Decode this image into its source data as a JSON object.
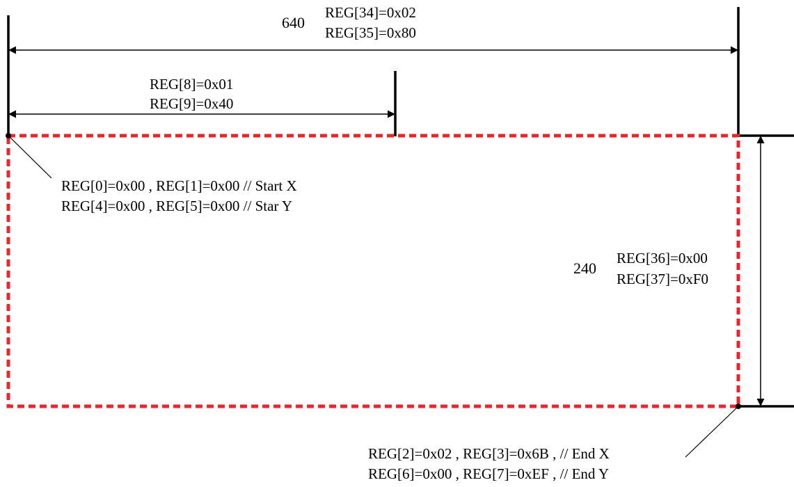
{
  "colors": {
    "window_outline": "#e8262c",
    "line": "#000000",
    "background": "#ffffff"
  },
  "total_width": {
    "value_text": "640",
    "reg_high": "REG[34]=0x02",
    "reg_low": "REG[35]=0x80"
  },
  "window_width": {
    "reg_high": "REG[8]=0x01",
    "reg_low": "REG[9]=0x40"
  },
  "start_point": {
    "line1": "REG[0]=0x00 , REG[1]=0x00 // Start X",
    "line2": "REG[4]=0x00 , REG[5]=0x00 // Star Y"
  },
  "total_height": {
    "value_text": "240",
    "reg_high": "REG[36]=0x00",
    "reg_low": "REG[37]=0xF0"
  },
  "end_point": {
    "line1": "REG[2]=0x02 , REG[3]=0x6B , // End X",
    "line2": "REG[6]=0x00 , REG[7]=0xEF , // End Y"
  }
}
